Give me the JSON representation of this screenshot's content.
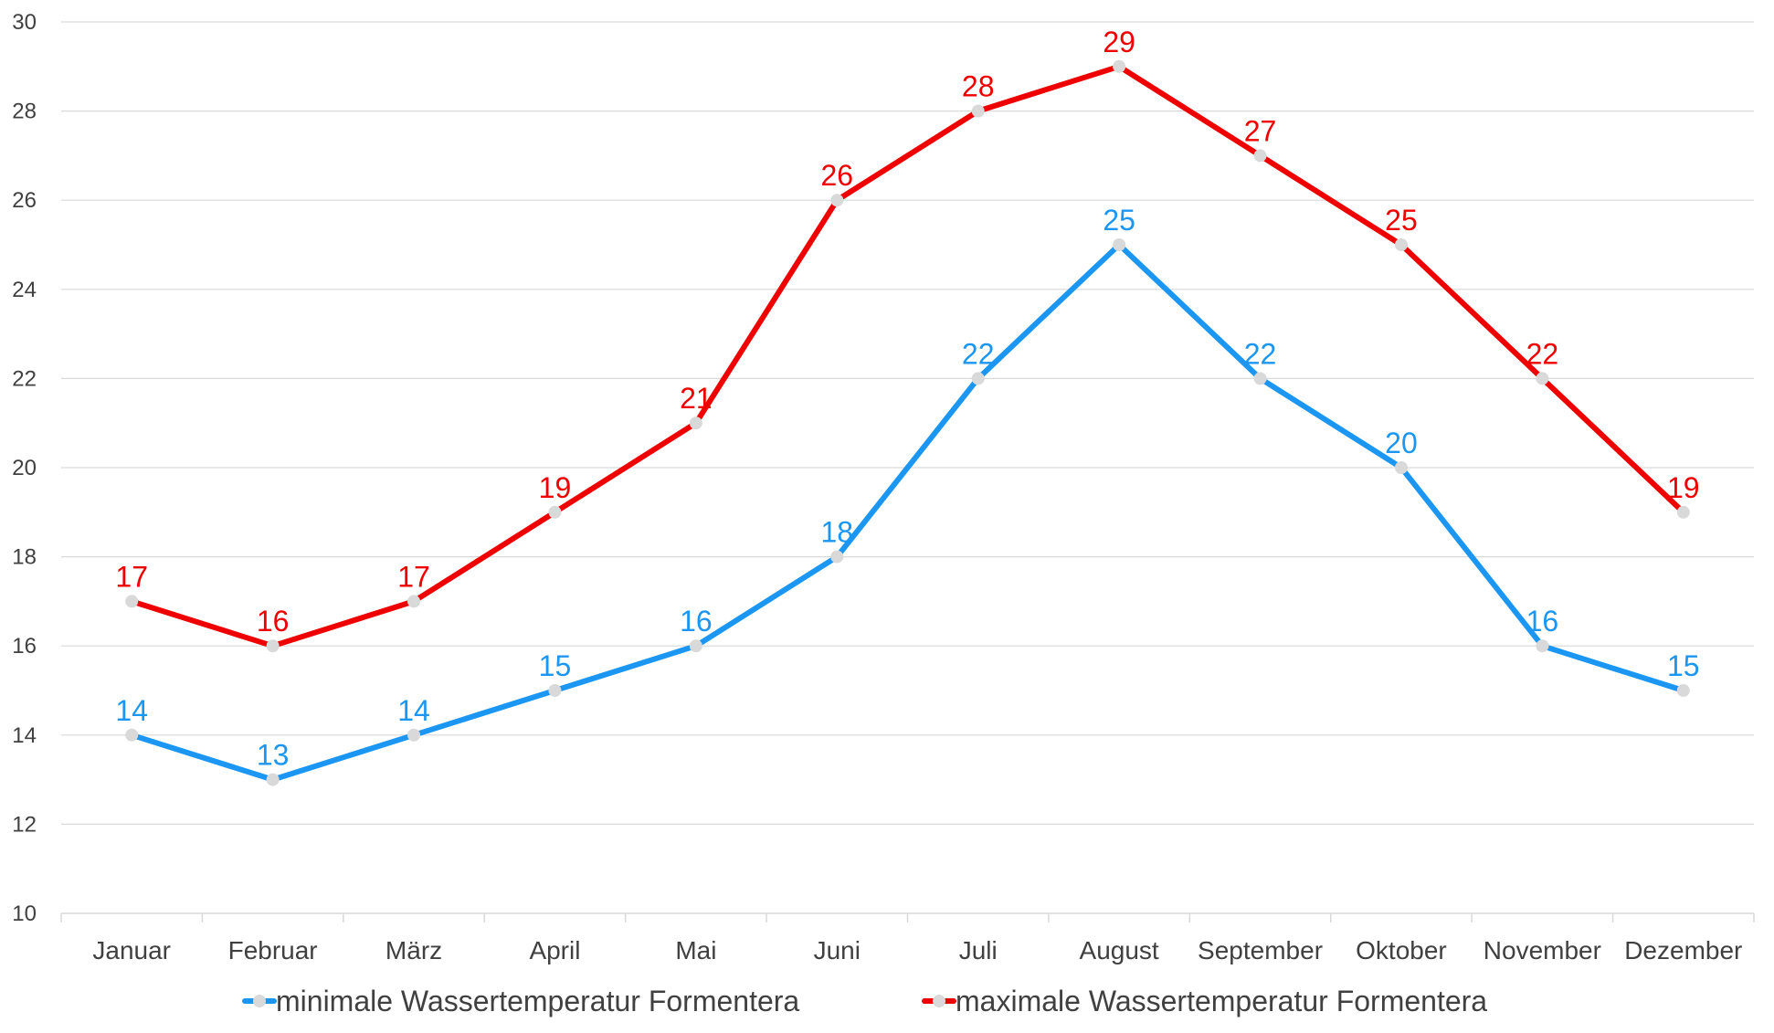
{
  "chart_data": {
    "type": "line",
    "categories": [
      "Januar",
      "Februar",
      "März",
      "April",
      "Mai",
      "Juni",
      "Juli",
      "August",
      "September",
      "Oktober",
      "November",
      "Dezember"
    ],
    "ylim": [
      10,
      30
    ],
    "yticks": [
      10,
      12,
      14,
      16,
      18,
      20,
      22,
      24,
      26,
      28,
      30
    ],
    "grid": true,
    "legend_position": "bottom",
    "series": [
      {
        "name": "minimale Wassertemperatur Formentera",
        "color": "#1b96f3",
        "values": [
          14,
          13,
          14,
          15,
          16,
          18,
          22,
          25,
          22,
          20,
          16,
          15
        ]
      },
      {
        "name": "maximale Wassertemperatur Formentera",
        "color": "#ee0000",
        "values": [
          17,
          16,
          17,
          19,
          21,
          26,
          28,
          29,
          27,
          25,
          22,
          19
        ]
      }
    ],
    "marker_color": "#d9d9d9",
    "gridline_color": "#d9d9d9"
  }
}
